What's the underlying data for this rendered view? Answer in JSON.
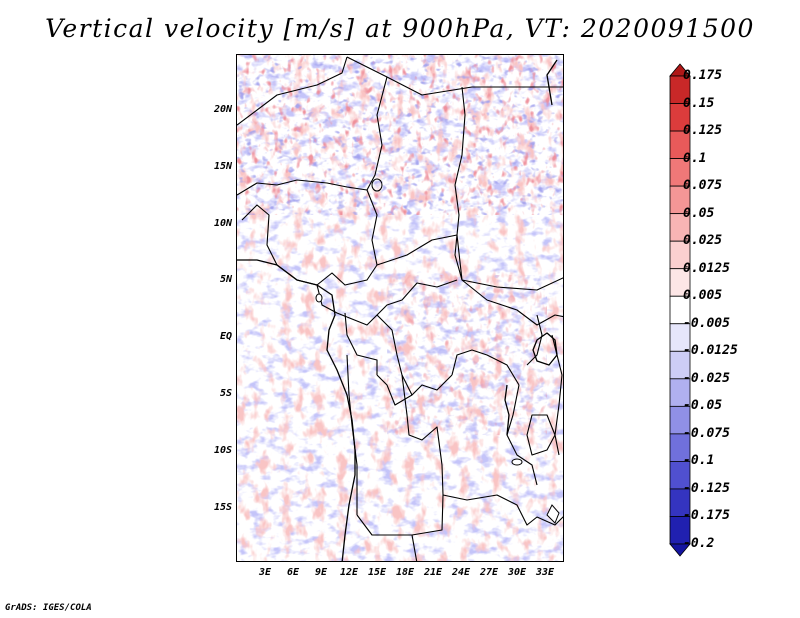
{
  "title": "Vertical velocity [m/s] at 900hPa, VT: 2020091500",
  "credit": "GrADS: IGES/COLA",
  "map": {
    "lat_labels": [
      "20N",
      "15N",
      "10N",
      "5N",
      "EQ",
      "5S",
      "10S",
      "15S"
    ],
    "lon_labels": [
      "3E",
      "6E",
      "9E",
      "12E",
      "15E",
      "18E",
      "21E",
      "24E",
      "27E",
      "30E",
      "33E"
    ]
  },
  "colorbar": {
    "levels": [
      "0.175",
      "0.15",
      "0.125",
      "0.1",
      "0.075",
      "0.05",
      "0.025",
      "0.0125",
      "0.005",
      "-0.005",
      "-0.0125",
      "-0.025",
      "-0.05",
      "-0.075",
      "-0.1",
      "-0.125",
      "-0.175",
      "-0.2"
    ],
    "colors": [
      "#b01818",
      "#c82828",
      "#dc3c3c",
      "#e85a5a",
      "#f07878",
      "#f49696",
      "#f8b4b4",
      "#fbd0d0",
      "#fde6e6",
      "#ffffff",
      "#e6e6fb",
      "#cdcdf6",
      "#b0b0f0",
      "#9090e6",
      "#7070dc",
      "#5050d0",
      "#3434c0",
      "#2020b0",
      "#1414a0"
    ]
  }
}
